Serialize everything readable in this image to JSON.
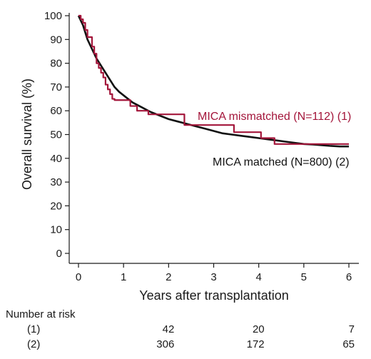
{
  "chart_data": {
    "type": "line",
    "title": "",
    "xlabel": "Years after transplantation",
    "ylabel": "Overall survival (%)",
    "xlim": [
      0,
      6
    ],
    "ylim": [
      0,
      100
    ],
    "x_ticks": [
      "0",
      "1",
      "2",
      "3",
      "4",
      "5",
      "6"
    ],
    "y_ticks": [
      "0",
      "10",
      "20",
      "30",
      "40",
      "50",
      "60",
      "70",
      "80",
      "90",
      "100"
    ],
    "grid": false,
    "legend": "inline labels beside curves",
    "series": [
      {
        "name": "MICA mismatched (N=112) (1)",
        "color": "#a3153a",
        "step": true,
        "x": [
          0,
          0.05,
          0.1,
          0.15,
          0.2,
          0.3,
          0.35,
          0.4,
          0.45,
          0.5,
          0.55,
          0.6,
          0.65,
          0.7,
          0.75,
          0.8,
          1.15,
          1.3,
          1.55,
          1.8,
          2.35,
          2.55,
          3.45,
          3.9,
          4.05,
          4.35,
          5.1,
          6.0
        ],
        "y": [
          100,
          98.5,
          97,
          94,
          91,
          87,
          84,
          80,
          78,
          76,
          74,
          71,
          69,
          67,
          65,
          64.5,
          62,
          60,
          58.5,
          58.5,
          54,
          54,
          51,
          51,
          48.5,
          46,
          46,
          46
        ]
      },
      {
        "name": "MICA matched (N=800) (2)",
        "color": "#111111",
        "step": false,
        "x": [
          0,
          0.05,
          0.1,
          0.15,
          0.2,
          0.3,
          0.4,
          0.5,
          0.6,
          0.7,
          0.8,
          0.9,
          1.0,
          1.1,
          1.2,
          1.4,
          1.6,
          1.8,
          2.0,
          2.2,
          2.4,
          2.6,
          2.8,
          3.0,
          3.2,
          3.4,
          3.6,
          3.8,
          4.0,
          4.2,
          4.4,
          4.6,
          4.8,
          5.0,
          5.2,
          5.4,
          5.6,
          5.8,
          6.0
        ],
        "y": [
          100,
          98,
          96,
          93,
          90,
          86,
          82,
          79,
          76,
          73,
          70,
          68,
          66.5,
          65,
          63.5,
          61.5,
          59.5,
          58,
          56.5,
          55.5,
          54.5,
          53.5,
          52.5,
          51.5,
          50.5,
          50,
          49.5,
          49,
          48.5,
          48,
          47.5,
          47,
          46.5,
          46,
          45.8,
          45.5,
          45.2,
          45,
          45
        ]
      }
    ]
  },
  "risk_table": {
    "title": "Number at risk",
    "rows": [
      {
        "label": "(1)",
        "values": [
          {
            "x": 2,
            "v": "42"
          },
          {
            "x": 4,
            "v": "20"
          },
          {
            "x": 6,
            "v": "7"
          }
        ]
      },
      {
        "label": "(2)",
        "values": [
          {
            "x": 2,
            "v": "306"
          },
          {
            "x": 4,
            "v": "172"
          },
          {
            "x": 6,
            "v": "65"
          }
        ]
      }
    ]
  }
}
